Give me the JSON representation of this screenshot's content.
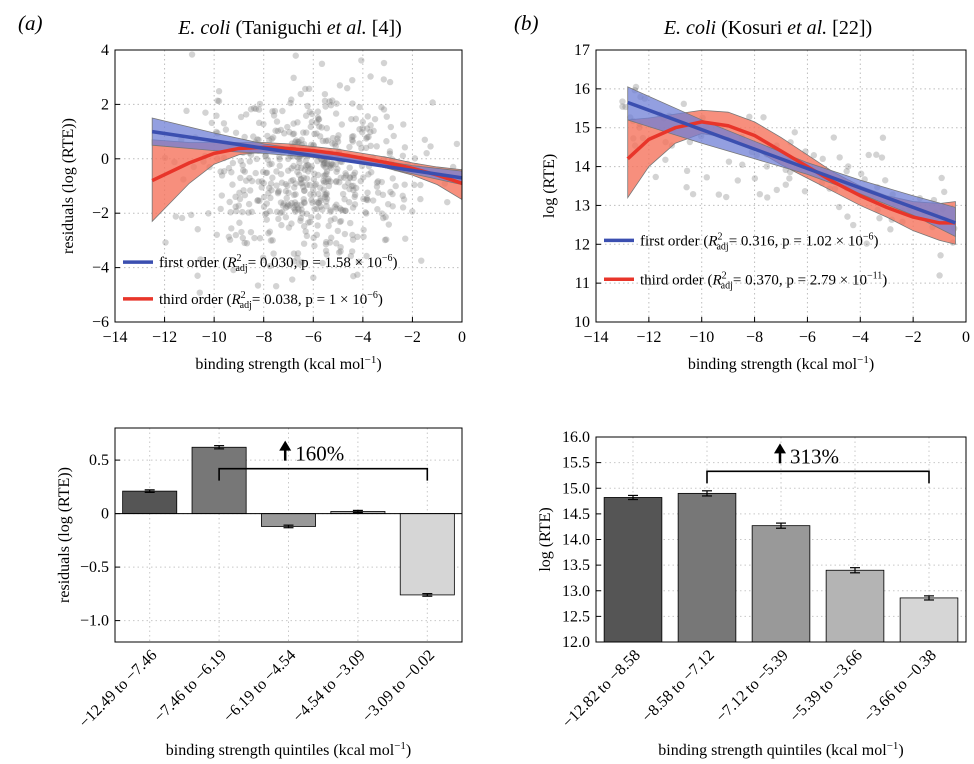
{
  "figure": {
    "panel_a_label": "(a)",
    "panel_b_label": "(b)",
    "title_a_species": "E. coli",
    "title_a_rest_prefix": " (Taniguchi ",
    "title_a_etal": "et al.",
    "title_a_suffix": " [4])",
    "title_b_species": "E. coli",
    "title_b_rest_prefix": " (Kosuri ",
    "title_b_etal": "et al.",
    "title_b_suffix": " [22])"
  },
  "colors": {
    "first_order_line": "#3b4fb0",
    "first_order_band": "#6f7fd6",
    "third_order_line": "#e8352a",
    "third_order_band": "#f5735c",
    "scatter_points": "#777777",
    "bars": [
      "#555555",
      "#777777",
      "#999999",
      "#b4b4b4",
      "#d6d6d6"
    ]
  },
  "chart_data": [
    {
      "id": "a-top",
      "type": "scatter",
      "xlabel": "binding strength (kcal mol",
      "xlabel_sup": "−1",
      "xlabel_close": ")",
      "ylabel": "residuals (log (RTE))",
      "xlim": [
        -14,
        0
      ],
      "ylim": [
        -6,
        4
      ],
      "x_ticks": [
        -14,
        -12,
        -10,
        -8,
        -6,
        -4,
        -2,
        0
      ],
      "x_tick_labels": [
        "−14",
        "−12",
        "−10",
        "−8",
        "−6",
        "−4",
        "−2",
        "0"
      ],
      "y_ticks": [
        -6,
        -4,
        -2,
        0,
        2,
        4
      ],
      "y_tick_labels": [
        "−6",
        "−4",
        "−2",
        "0",
        "2",
        "4"
      ],
      "grid": true,
      "scatter_seed": 7,
      "scatter_count": 600,
      "scatter_note": "dense cloud concentrated between x −9 and −3, y −3 to 4",
      "series": [
        {
          "name": "first order",
          "legend": "first order (R²adj = 0.030, p = 1.58 × 10⁻⁶)",
          "legend_stat": "= 0.030, p = 1.58 × 10",
          "legend_exp": "−6",
          "fit": {
            "x": [
              -12.5,
              0
            ],
            "y": [
              1.0,
              -0.7
            ]
          },
          "band": {
            "x": [
              -12.5,
              -10,
              -8,
              -6,
              -4,
              -2,
              0
            ],
            "upper": [
              1.5,
              0.95,
              0.55,
              0.3,
              0.05,
              -0.25,
              -0.45
            ],
            "lower": [
              0.5,
              0.3,
              0.2,
              0.05,
              -0.15,
              -0.55,
              -0.95
            ]
          }
        },
        {
          "name": "third order",
          "legend": "third order (R²adj = 0.038, p = 1 × 10⁻⁶)",
          "legend_stat": "= 0.038, p = 1 × 10",
          "legend_exp": "−6",
          "fit": {
            "x": [
              -12.5,
              -11,
              -10,
              -9,
              -8,
              -7,
              -6,
              -5,
              -4,
              -3,
              -2,
              -1,
              0
            ],
            "y": [
              -0.8,
              -0.15,
              0.2,
              0.38,
              0.42,
              0.38,
              0.3,
              0.18,
              0.02,
              -0.15,
              -0.35,
              -0.6,
              -0.9
            ]
          },
          "band": {
            "x": [
              -12.5,
              -11,
              -10,
              -9,
              -8,
              -7,
              -6,
              -5,
              -4,
              -3,
              -2,
              -1,
              0
            ],
            "upper": [
              0.7,
              0.6,
              0.6,
              0.6,
              0.6,
              0.55,
              0.45,
              0.35,
              0.2,
              0.05,
              -0.15,
              -0.3,
              -0.4
            ],
            "lower": [
              -2.3,
              -0.9,
              -0.2,
              0.15,
              0.25,
              0.22,
              0.15,
              0.02,
              -0.15,
              -0.35,
              -0.6,
              -0.95,
              -1.5
            ]
          }
        }
      ]
    },
    {
      "id": "b-top",
      "type": "scatter",
      "xlabel": "binding strength (kcal mol",
      "xlabel_sup": "−1",
      "xlabel_close": ")",
      "ylabel": "log (RTE)",
      "xlim": [
        -14,
        0
      ],
      "ylim": [
        10,
        17
      ],
      "x_ticks": [
        -14,
        -12,
        -10,
        -8,
        -6,
        -4,
        -2,
        0
      ],
      "x_tick_labels": [
        "−14",
        "−12",
        "−10",
        "−8",
        "−6",
        "−4",
        "−2",
        "0"
      ],
      "y_ticks": [
        10,
        11,
        12,
        13,
        14,
        15,
        16,
        17
      ],
      "y_tick_labels": [
        "10",
        "11",
        "12",
        "13",
        "14",
        "15",
        "16",
        "17"
      ],
      "grid": true,
      "scatter_seed": 13,
      "scatter_count": 110,
      "scatter_note": "sparse points from x −13 to 0, y 12 to 16.3",
      "series": [
        {
          "name": "first order",
          "legend": "first order (R²adj = 0.316, p = 1.02 × 10⁻⁶)",
          "legend_stat": "= 0.316, p = 1.02 × 10",
          "legend_exp": "−6",
          "fit": {
            "x": [
              -12.8,
              -0.4
            ],
            "y": [
              15.65,
              12.55
            ]
          },
          "band": {
            "x": [
              -12.8,
              -10,
              -8,
              -6,
              -4,
              -2,
              -0.4
            ],
            "upper": [
              16.05,
              15.2,
              14.65,
              14.1,
              13.65,
              13.25,
              12.95
            ],
            "lower": [
              15.2,
              14.6,
              14.2,
              13.8,
              13.3,
              12.75,
              12.2
            ]
          }
        },
        {
          "name": "third order",
          "legend": "third order (R²adj = 0.370, p = 2.79 × 10⁻¹¹)",
          "legend_stat": "= 0.370, p = 2.79 × 10",
          "legend_exp": "−11",
          "fit": {
            "x": [
              -12.8,
              -12,
              -11,
              -10,
              -9,
              -8,
              -7,
              -6,
              -5,
              -4,
              -3,
              -2,
              -1,
              -0.4
            ],
            "y": [
              14.2,
              14.7,
              15.0,
              15.15,
              15.05,
              14.8,
              14.4,
              14.0,
              13.6,
              13.25,
              12.95,
              12.7,
              12.55,
              12.55
            ]
          },
          "band": {
            "x": [
              -12.8,
              -12,
              -11,
              -10,
              -9,
              -8,
              -7,
              -6,
              -5,
              -4,
              -3,
              -2,
              -1,
              -0.4
            ],
            "upper": [
              15.2,
              15.25,
              15.35,
              15.45,
              15.4,
              15.15,
              14.75,
              14.3,
              13.85,
              13.5,
              13.25,
              13.1,
              13.05,
              13.1
            ],
            "lower": [
              13.2,
              14.0,
              14.6,
              14.85,
              14.75,
              14.45,
              14.05,
              13.7,
              13.35,
              13.0,
              12.7,
              12.35,
              12.1,
              12.0
            ]
          }
        }
      ]
    },
    {
      "id": "a-bottom",
      "type": "bar",
      "categories": [
        "−12.49 to −7.46",
        "−7.46 to −6.19",
        "−6.19 to −4.54",
        "−4.54 to −3.09",
        "−3.09 to −0.02"
      ],
      "values": [
        0.21,
        0.62,
        -0.12,
        0.02,
        -0.76
      ],
      "errors": [
        0.012,
        0.015,
        0.012,
        0.01,
        0.012
      ],
      "xlabel": "binding strength quintiles (kcal mol",
      "xlabel_sup": "−1",
      "xlabel_close": ")",
      "ylabel": "residuals (log (RTE))",
      "ylim": [
        -1.2,
        0.8
      ],
      "y_ticks": [
        -1.0,
        -0.5,
        0,
        0.5
      ],
      "y_tick_labels": [
        "−1.0",
        "−0.5",
        "0",
        "0.5"
      ],
      "grid": true,
      "annotation": {
        "text": "160%",
        "from_bar": 1,
        "to_bar": 4,
        "level": 0.42
      }
    },
    {
      "id": "b-bottom",
      "type": "bar",
      "categories": [
        "−12.82 to −8.58",
        "−8.58 to −7.12",
        "−7.12 to −5.39",
        "−5.39 to −3.66",
        "−3.66 to −0.38"
      ],
      "values": [
        14.82,
        14.9,
        14.27,
        13.4,
        12.86
      ],
      "errors": [
        0.04,
        0.05,
        0.05,
        0.05,
        0.04
      ],
      "xlabel": "binding strength quintiles (kcal mol",
      "xlabel_sup": "−1",
      "xlabel_close": ")",
      "ylabel": "log (RTE)",
      "ylim": [
        12.0,
        16.0
      ],
      "y_ticks": [
        12.0,
        12.5,
        13.0,
        13.5,
        14.0,
        14.5,
        15.0,
        15.5,
        16.0
      ],
      "y_tick_labels": [
        "12.0",
        "12.5",
        "13.0",
        "13.5",
        "14.0",
        "14.5",
        "15.0",
        "15.5",
        "16.0"
      ],
      "grid": true,
      "annotation": {
        "text": "313%",
        "from_bar": 1,
        "to_bar": 4,
        "level": 15.33
      }
    }
  ]
}
